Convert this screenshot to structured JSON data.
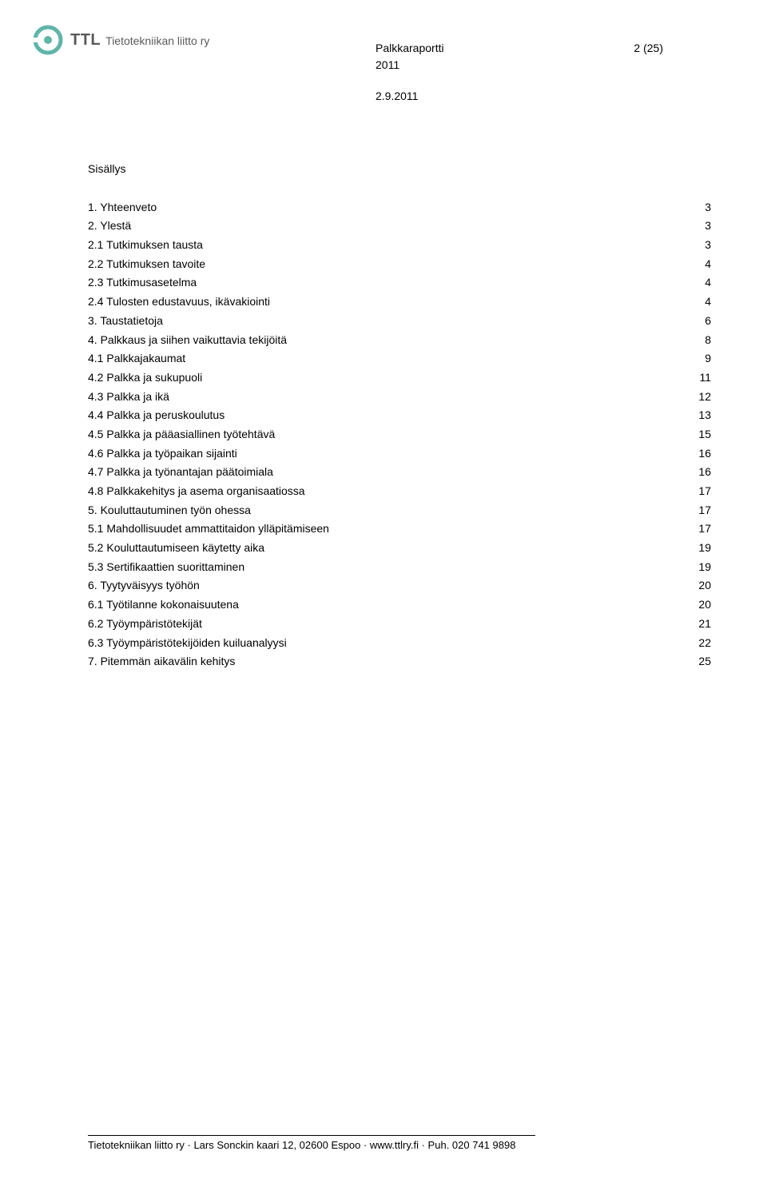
{
  "logo": {
    "abbrev": "TTL",
    "full": "Tietotekniikan liitto ry",
    "mark_color": "#5fb5a8",
    "text_color": "#5a5a5a"
  },
  "header": {
    "title": "Palkkaraportti",
    "page_indicator": "2 (25)",
    "year": "2011",
    "date": "2.9.2011"
  },
  "toc_heading": "Sisällys",
  "toc": [
    {
      "label": "1. Yhteenveto",
      "page": "3",
      "indent": 0
    },
    {
      "label": "2. Ylestä",
      "page": "3",
      "indent": 0
    },
    {
      "label": "2.1 Tutkimuksen tausta",
      "page": "3",
      "indent": 1
    },
    {
      "label": "2.2 Tutkimuksen tavoite",
      "page": "4",
      "indent": 1
    },
    {
      "label": "2.3 Tutkimusasetelma",
      "page": "4",
      "indent": 1
    },
    {
      "label": "2.4 Tulosten edustavuus, ikävakiointi",
      "page": "4",
      "indent": 1
    },
    {
      "label": "3. Taustatietoja",
      "page": "6",
      "indent": 0
    },
    {
      "label": "4. Palkkaus ja siihen vaikuttavia tekijöitä",
      "page": "8",
      "indent": 0
    },
    {
      "label": "4.1 Palkkajakaumat",
      "page": "9",
      "indent": 1
    },
    {
      "label": "4.2 Palkka ja sukupuoli",
      "page": "11",
      "indent": 1
    },
    {
      "label": "4.3 Palkka ja ikä",
      "page": "12",
      "indent": 1
    },
    {
      "label": "4.4 Palkka ja peruskoulutus",
      "page": "13",
      "indent": 1
    },
    {
      "label": "4.5 Palkka ja pääasiallinen työtehtävä",
      "page": "15",
      "indent": 1
    },
    {
      "label": "4.6 Palkka ja työpaikan sijainti",
      "page": "16",
      "indent": 1
    },
    {
      "label": "4.7 Palkka ja työnantajan päätoimiala",
      "page": "16",
      "indent": 1
    },
    {
      "label": "4.8 Palkkakehitys ja asema organisaatiossa",
      "page": "17",
      "indent": 1
    },
    {
      "label": "5. Kouluttautuminen työn ohessa",
      "page": "17",
      "indent": 0
    },
    {
      "label": "5.1 Mahdollisuudet ammattitaidon ylläpitämiseen",
      "page": "17",
      "indent": 1
    },
    {
      "label": "5.2 Kouluttautumiseen käytetty aika",
      "page": "19",
      "indent": 1
    },
    {
      "label": "5.3 Sertifikaattien suorittaminen",
      "page": "19",
      "indent": 1
    },
    {
      "label": "6. Tyytyväisyys työhön",
      "page": "20",
      "indent": 0
    },
    {
      "label": "6.1 Työtilanne kokonaisuutena",
      "page": "20",
      "indent": 1
    },
    {
      "label": "6.2 Työympäristötekijät",
      "page": "21",
      "indent": 1
    },
    {
      "label": "6.3 Työympäristötekijöiden kuiluanalyysi",
      "page": "22",
      "indent": 1
    },
    {
      "label": "7. Pitemmän aikavälin kehitys",
      "page": "25",
      "indent": 0
    }
  ],
  "footer": {
    "text": "Tietotekniikan liitto ry · Lars Sonckin kaari 12, 02600 Espoo · www.ttlry.fi · Puh. 020 741 9898"
  }
}
